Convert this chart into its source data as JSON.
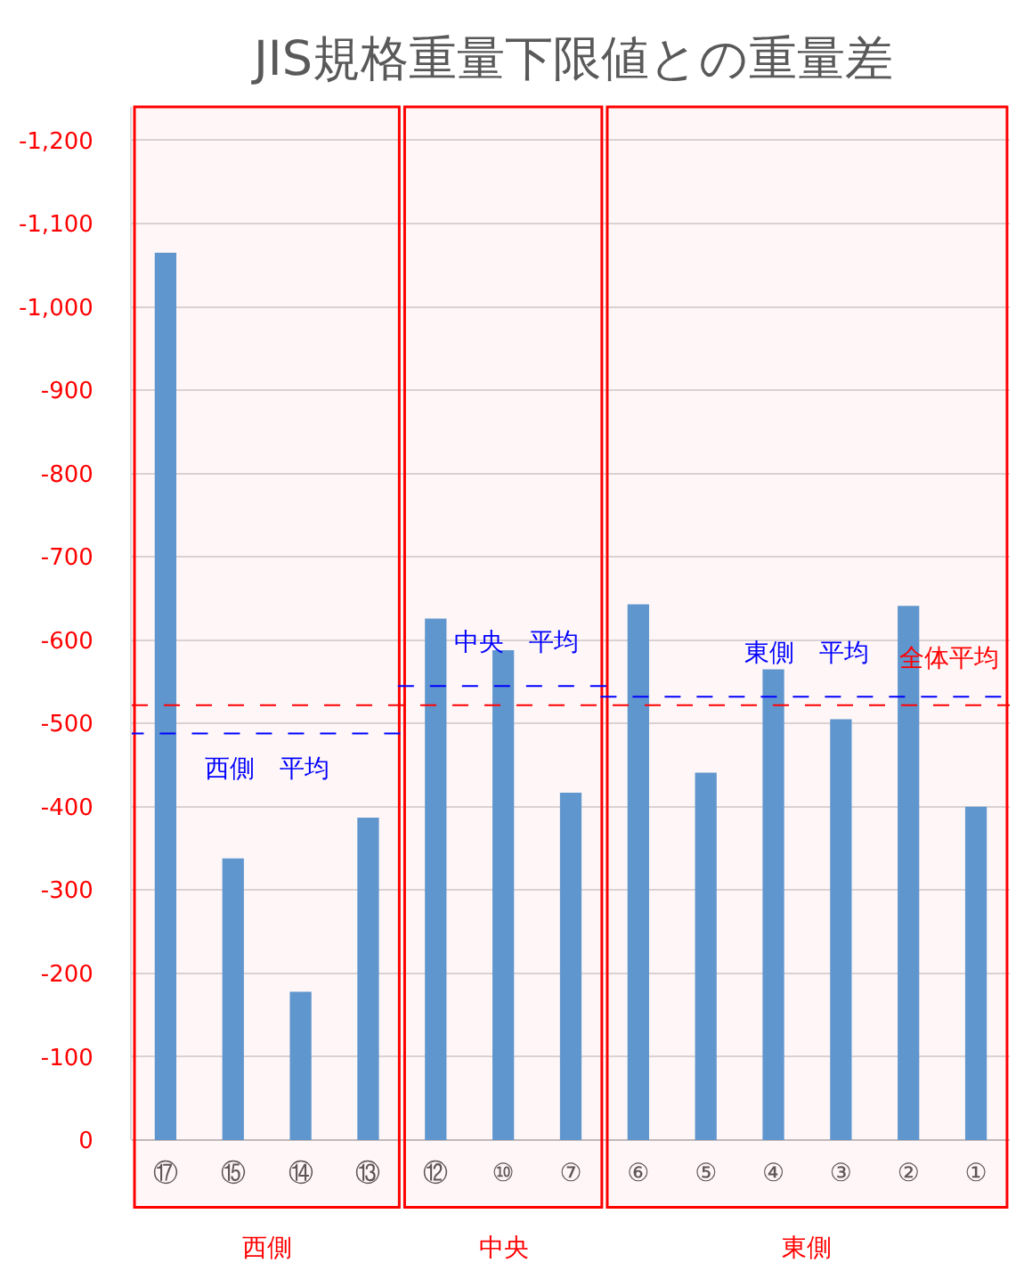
{
  "chart_data": {
    "type": "bar",
    "title": "JIS規格重量下限値との重量差",
    "categories": [
      "⑰",
      "⑮",
      "⑭",
      "⑬",
      "⑫",
      "⑩",
      "⑦",
      "⑥",
      "⑤",
      "④",
      "③",
      "②",
      "①"
    ],
    "values": [
      -1065,
      -338,
      -178,
      -387,
      -626,
      -588,
      -417,
      -643,
      -441,
      -565,
      -505,
      -641,
      -400
    ],
    "color": "#5b9bd5",
    "ylim": [
      0,
      -1240
    ],
    "yticks": [
      0,
      {
        "value": -100,
        "label": "-100"
      },
      {
        "value": -200,
        "label": "-200"
      },
      {
        "value": -300,
        "label": "-300"
      },
      {
        "value": -400,
        "label": "-400"
      },
      {
        "value": -500,
        "label": "-500"
      },
      {
        "value": -600,
        "label": "-600"
      },
      {
        "value": -700,
        "label": "-700"
      },
      {
        "value": -800,
        "label": "-800"
      },
      {
        "value": -900,
        "label": "-900"
      },
      {
        "value": -1000,
        "label": "-1,000"
      },
      {
        "value": -1100,
        "label": "-1,100"
      },
      {
        "value": -1200,
        "label": "-1,200"
      }
    ],
    "grid": "y",
    "bands": [
      {
        "axis": "x",
        "from": "⑰",
        "to": "⑬",
        "label": "西側",
        "color": "#ff0000"
      },
      {
        "axis": "x",
        "from": "⑫",
        "to": "⑦",
        "label": "中央",
        "color": "#ff0000"
      },
      {
        "axis": "x",
        "from": "⑥",
        "to": "①",
        "label": "東側",
        "color": "#ff0000"
      }
    ],
    "ref_lines": [
      {
        "axis": "y",
        "value": -488,
        "label": "西側　平均",
        "color": "#0000ff",
        "line_style": "dashed"
      },
      {
        "axis": "y",
        "value": -545,
        "label": "中央　平均",
        "color": "#0000ff",
        "line_style": "dashed"
      },
      {
        "axis": "y",
        "value": -532,
        "label": "東側　平均",
        "color": "#0000ff",
        "line_style": "dashed"
      },
      {
        "axis": "y",
        "value": -522,
        "label": "全体平均",
        "color": "#ff0000",
        "line_style": "dashed"
      }
    ]
  }
}
